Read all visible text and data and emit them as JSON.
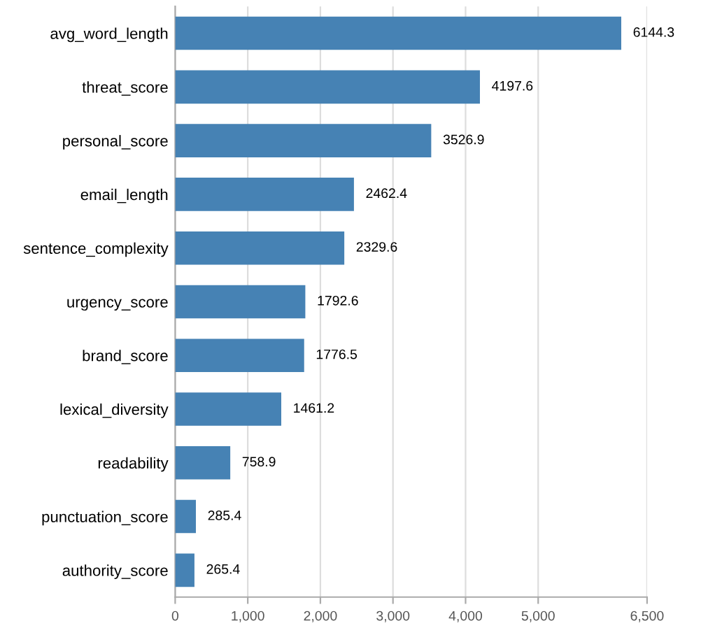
{
  "chart_data": {
    "type": "bar",
    "orientation": "horizontal",
    "categories": [
      "avg_word_length",
      "threat_score",
      "personal_score",
      "email_length",
      "sentence_complexity",
      "urgency_score",
      "brand_score",
      "lexical_diversity",
      "readability",
      "punctuation_score",
      "authority_score"
    ],
    "values": [
      6144.3,
      4197.6,
      3526.9,
      2462.4,
      2329.6,
      1792.6,
      1776.5,
      1461.2,
      758.9,
      285.4,
      265.4
    ],
    "color": "#4682b4",
    "xlim": [
      0,
      6500
    ],
    "xticks": [
      0,
      {
        "value": 1000,
        "label": "1,000"
      },
      {
        "value": 2000,
        "label": "2,000"
      },
      {
        "value": 3000,
        "label": "3,000"
      },
      {
        "value": 4000,
        "label": "4,000"
      },
      {
        "value": 5000,
        "label": "5,000"
      },
      {
        "value": 6500,
        "label": "6,500"
      }
    ],
    "grid": "x",
    "data_labels": true
  }
}
